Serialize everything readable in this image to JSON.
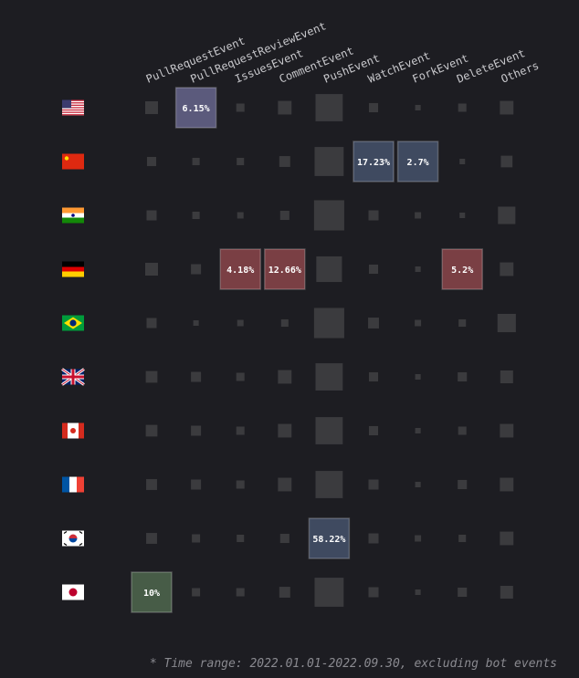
{
  "chart_data": {
    "type": "heatmap",
    "x": [
      "PullRequestEvent",
      "PullRequestReviewEvent",
      "IssuesEvent",
      "CommentEvent",
      "PushEvent",
      "WatchEvent",
      "ForkEvent",
      "DeleteEvent",
      "Others"
    ],
    "y": [
      null,
      null,
      null,
      null,
      null,
      null,
      null,
      null,
      null,
      null
    ],
    "cell_color": "#3b3b3e",
    "values": [
      [
        9.7,
        6.15,
        4,
        11,
        44,
        5,
        1.8,
        4,
        11
      ],
      [
        5,
        3.2,
        3.2,
        7,
        50,
        17.23,
        2.7,
        1.8,
        8
      ],
      [
        6,
        3.2,
        2.4,
        5,
        54,
        6,
        2.4,
        1.8,
        18
      ],
      [
        9.7,
        6,
        4.18,
        12.66,
        39,
        5,
        1.8,
        5.2,
        11
      ],
      [
        6,
        1.8,
        2.4,
        3.2,
        54,
        7,
        2.4,
        3.2,
        20
      ],
      [
        8,
        6,
        4,
        11,
        44,
        5,
        1.8,
        5,
        9.7
      ],
      [
        8,
        6,
        4,
        11,
        44,
        5,
        1.8,
        4,
        11
      ],
      [
        7,
        6,
        4,
        11,
        44,
        6,
        1.8,
        5,
        11
      ],
      [
        7,
        4,
        3.2,
        5,
        58.22,
        6,
        2.4,
        3.2,
        11
      ],
      [
        10,
        4,
        4,
        7,
        50,
        6,
        1.8,
        5,
        9.7
      ]
    ],
    "value_labels": [
      [
        null,
        "6.15%",
        null,
        null,
        null,
        null,
        null,
        null,
        null
      ],
      [
        null,
        null,
        null,
        null,
        null,
        "17.23%",
        "2.7%",
        null,
        null
      ],
      [
        null,
        null,
        null,
        null,
        null,
        null,
        null,
        null,
        null
      ],
      [
        null,
        null,
        "4.18%",
        "12.66%",
        null,
        null,
        null,
        "5.2%",
        null
      ],
      [
        null,
        null,
        null,
        null,
        null,
        null,
        null,
        null,
        null
      ],
      [
        null,
        null,
        null,
        null,
        null,
        null,
        null,
        null,
        null
      ],
      [
        null,
        null,
        null,
        null,
        null,
        null,
        null,
        null,
        null
      ],
      [
        null,
        null,
        null,
        null,
        null,
        null,
        null,
        null,
        null
      ],
      [
        null,
        null,
        null,
        null,
        "58.22%",
        null,
        null,
        null,
        null
      ],
      [
        "10%",
        null,
        null,
        null,
        null,
        null,
        null,
        null,
        null
      ]
    ],
    "highlight_colors": [
      [
        null,
        "#5b5a7c",
        null,
        null,
        null,
        null,
        null,
        null,
        null
      ],
      [
        null,
        null,
        null,
        null,
        null,
        "#3f4a60",
        "#3f4a60",
        null,
        null
      ],
      [
        null,
        null,
        null,
        null,
        null,
        null,
        null,
        null,
        null
      ],
      [
        null,
        null,
        "#7a3f44",
        "#7a3f44",
        null,
        null,
        null,
        "#7a3f44",
        null
      ],
      [
        null,
        null,
        null,
        null,
        null,
        null,
        null,
        null,
        null
      ],
      [
        null,
        null,
        null,
        null,
        null,
        null,
        null,
        null,
        null
      ],
      [
        null,
        null,
        null,
        null,
        null,
        null,
        null,
        null,
        null
      ],
      [
        null,
        null,
        null,
        null,
        null,
        null,
        null,
        null,
        null
      ],
      [
        null,
        null,
        null,
        null,
        "#3f4a60",
        null,
        null,
        null,
        null
      ],
      [
        "#475c47",
        null,
        null,
        null,
        null,
        null,
        null,
        null,
        null
      ]
    ],
    "footnote": "* Time range: 2022.01.01-2022.09.30, excluding bot events"
  }
}
